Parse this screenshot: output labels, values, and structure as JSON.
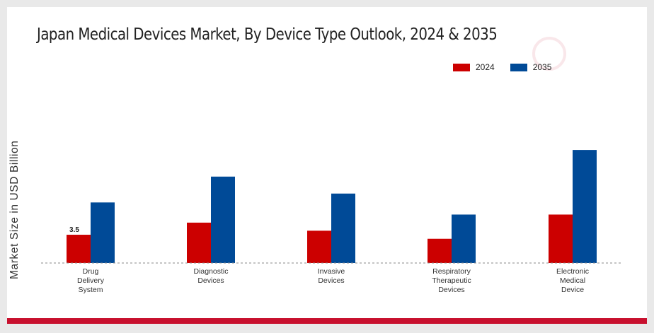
{
  "chart_data": {
    "type": "bar",
    "title": "Japan Medical Devices Market, By Device Type Outlook, 2024 & 2035",
    "ylabel": "Market Size in USD Billion",
    "xlabel": "",
    "categories": [
      [
        "Drug",
        "Delivery",
        "System"
      ],
      [
        "Diagnostic",
        "Devices"
      ],
      [
        "Invasive",
        "Devices"
      ],
      [
        "Respiratory",
        "Therapeutic",
        "Devices"
      ],
      [
        "Electronic",
        "Medical",
        "Device"
      ]
    ],
    "series": [
      {
        "name": "2024",
        "color": "#cc0000",
        "values": [
          3.5,
          5.0,
          4.0,
          3.0,
          6.0
        ]
      },
      {
        "name": "2035",
        "color": "#004a97",
        "values": [
          7.5,
          10.7,
          8.6,
          6.0,
          14.0
        ]
      }
    ],
    "data_labels": [
      {
        "series": 0,
        "index": 0,
        "text": "3.5"
      }
    ],
    "ylim": [
      0,
      19
    ],
    "grid": false,
    "legend_position": "top-right"
  }
}
